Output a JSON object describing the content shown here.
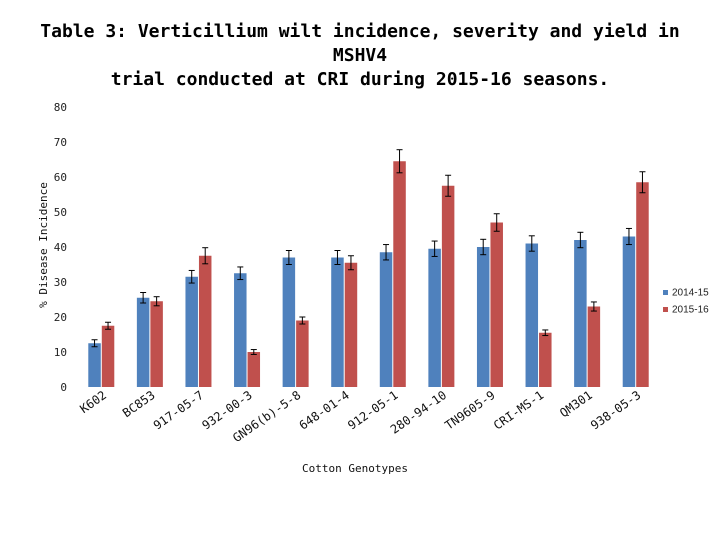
{
  "title_line1": "Table 3: Verticillium wilt incidence, severity and yield in MSHV4",
  "title_line2": "trial conducted at CRI during 2015-16 seasons.",
  "chart_data": {
    "type": "bar",
    "xlabel": "Cotton Genotypes",
    "ylabel": "% Disease Incidence",
    "ylim": [
      0,
      80
    ],
    "yticks": [
      0,
      10,
      20,
      30,
      40,
      50,
      60,
      70,
      80
    ],
    "grid": false,
    "legend_position": "right",
    "categories": [
      "K602",
      "BC853",
      "917-05-7",
      "932-00-3",
      "GN96(b)-5-8",
      "648-01-4",
      "912-05-1",
      "280-94-10",
      "TN9605-9",
      "CRI-MS-1",
      "QM301",
      "938-05-3"
    ],
    "series": [
      {
        "name": "2014-15",
        "color": "#4f81bd",
        "values": [
          12.5,
          25.5,
          31.5,
          32.5,
          37.0,
          37.0,
          38.5,
          39.5,
          40.0,
          41.0,
          42.0,
          43.0
        ],
        "errors": [
          1.0,
          1.5,
          1.8,
          1.8,
          2.0,
          2.0,
          2.2,
          2.2,
          2.2,
          2.2,
          2.2,
          2.3
        ]
      },
      {
        "name": "2015-16",
        "color": "#c0504d",
        "values": [
          17.5,
          24.5,
          37.5,
          10.0,
          19.0,
          35.5,
          64.5,
          57.5,
          47.0,
          15.5,
          23.0,
          58.5
        ],
        "errors": [
          1.0,
          1.3,
          2.3,
          0.7,
          1.0,
          2.0,
          3.3,
          3.0,
          2.5,
          0.8,
          1.3,
          3.0
        ]
      }
    ]
  }
}
